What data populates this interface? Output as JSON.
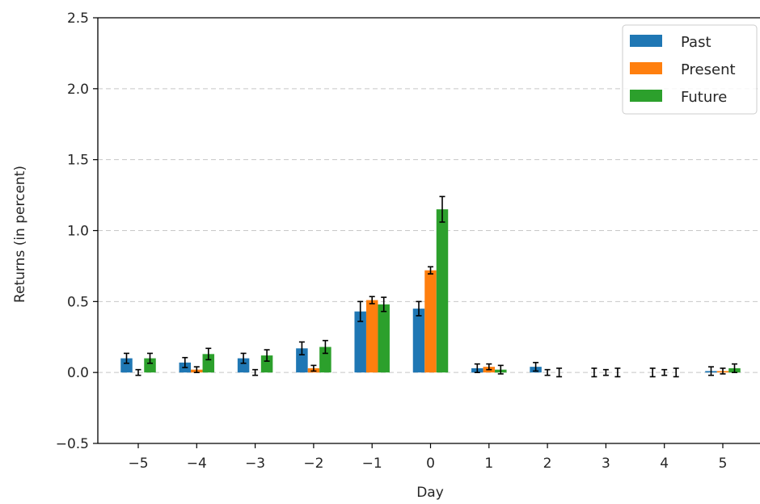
{
  "chart_data": {
    "type": "bar",
    "title": "",
    "xlabel": "Day",
    "ylabel": "Returns (in percent)",
    "categories": [
      "−5",
      "−4",
      "−3",
      "−2",
      "−1",
      "0",
      "1",
      "2",
      "3",
      "4",
      "5"
    ],
    "ylim": [
      -0.5,
      2.5
    ],
    "yticks": [
      -0.5,
      0.0,
      0.5,
      1.0,
      1.5,
      2.0,
      2.5
    ],
    "ytick_labels": [
      "−0.5",
      "0.0",
      "0.5",
      "1.0",
      "1.5",
      "2.0",
      "2.5"
    ],
    "grid": "horizontal dashed",
    "legend_position": "top-right",
    "series": [
      {
        "name": "Past",
        "color": "#1f77b4",
        "values": [
          0.1,
          0.07,
          0.1,
          0.17,
          0.43,
          0.45,
          0.03,
          0.04,
          0.0,
          0.0,
          0.01
        ],
        "errors": [
          0.035,
          0.035,
          0.035,
          0.045,
          0.07,
          0.05,
          0.03,
          0.03,
          0.03,
          0.03,
          0.03
        ]
      },
      {
        "name": "Present",
        "color": "#ff7f0e",
        "values": [
          0.0,
          0.02,
          0.0,
          0.03,
          0.51,
          0.72,
          0.04,
          0.0,
          0.0,
          0.0,
          0.01
        ],
        "errors": [
          0.02,
          0.02,
          0.02,
          0.02,
          0.025,
          0.025,
          0.02,
          0.02,
          0.02,
          0.02,
          0.02
        ]
      },
      {
        "name": "Future",
        "color": "#2ca02c",
        "values": [
          0.1,
          0.13,
          0.12,
          0.18,
          0.48,
          1.15,
          0.02,
          0.0,
          0.0,
          0.0,
          0.03
        ],
        "errors": [
          0.035,
          0.04,
          0.04,
          0.045,
          0.05,
          0.09,
          0.03,
          0.03,
          0.03,
          0.03,
          0.03
        ]
      }
    ]
  }
}
